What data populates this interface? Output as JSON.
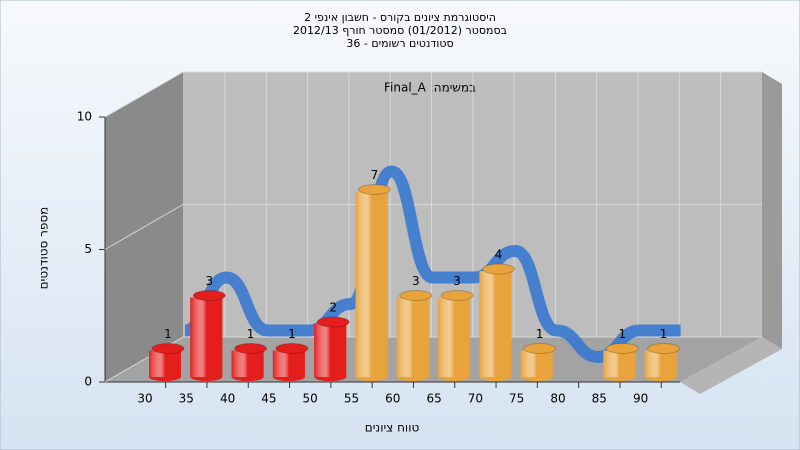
{
  "chart_data": {
    "type": "bar3d",
    "title": [
      "היסטוגרמת ציונים בקורס - חשבון אינפי 2",
      "בסמסטר  (01/2012)  סמסטר חורף 2012/13",
      "סטודנטים רשומים - 36"
    ],
    "annotation": "Final_A :במשימה",
    "x_label": "טווח ציונים",
    "y_label": "מספר סטודנטים",
    "categories": [
      "30",
      "35",
      "40",
      "45",
      "50",
      "55",
      "60",
      "65",
      "70",
      "75",
      "80",
      "85",
      "90"
    ],
    "values": [
      1,
      3,
      1,
      1,
      2,
      7,
      3,
      3,
      4,
      1,
      0,
      1,
      1
    ],
    "colors": [
      "#e41d1d",
      "#e41d1d",
      "#e41d1d",
      "#e41d1d",
      "#e41d1d",
      "#e8a33c",
      "#e8a33c",
      "#e8a33c",
      "#e8a33c",
      "#e8a33c",
      "#e8a33c",
      "#e8a33c",
      "#e8a33c"
    ],
    "trend_color": "#3a78d0",
    "ylim": [
      0,
      10
    ],
    "yticks": [
      0,
      5,
      10
    ],
    "grid": true
  }
}
